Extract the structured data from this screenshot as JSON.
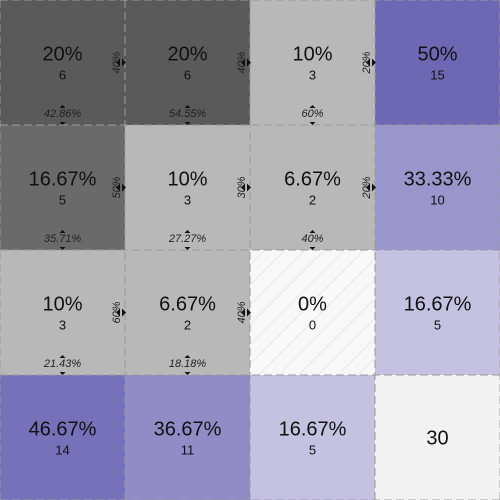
{
  "chart_data": {
    "type": "heatmap",
    "title": "",
    "rows": 3,
    "cols": 3,
    "cells": [
      [
        {
          "pct": "20%",
          "count": 6
        },
        {
          "pct": "20%",
          "count": 6
        },
        {
          "pct": "10%",
          "count": 3
        }
      ],
      [
        {
          "pct": "16.67%",
          "count": 5
        },
        {
          "pct": "10%",
          "count": 3
        },
        {
          "pct": "6.67%",
          "count": 2
        }
      ],
      [
        {
          "pct": "10%",
          "count": 3
        },
        {
          "pct": "6.67%",
          "count": 2
        },
        {
          "pct": "0%",
          "count": 0
        }
      ]
    ],
    "right_flows": [
      [
        "40%",
        "40%",
        "20%"
      ],
      [
        "50%",
        "30%",
        "20%"
      ],
      [
        "60%",
        "40%",
        ""
      ]
    ],
    "down_flows": [
      [
        "42.86%",
        "54.55%",
        "60%"
      ],
      [
        "35.71%",
        "27.27%",
        "40%"
      ],
      [
        "21.43%",
        "18.18%",
        ""
      ]
    ],
    "row_totals": [
      {
        "pct": "50%",
        "count": 15
      },
      {
        "pct": "33.33%",
        "count": 10
      },
      {
        "pct": "16.67%",
        "count": 5
      }
    ],
    "col_totals": [
      {
        "pct": "46.67%",
        "count": 14
      },
      {
        "pct": "36.67%",
        "count": 11
      },
      {
        "pct": "16.67%",
        "count": 5
      }
    ],
    "grand_total": "30",
    "colors": {
      "cell_dark": "#5a5a5a",
      "cell_light": "#f8f8f8",
      "total_dark": "#6e68b4",
      "total_light": "#f1eef8",
      "corner": "#f2f2f2"
    }
  }
}
